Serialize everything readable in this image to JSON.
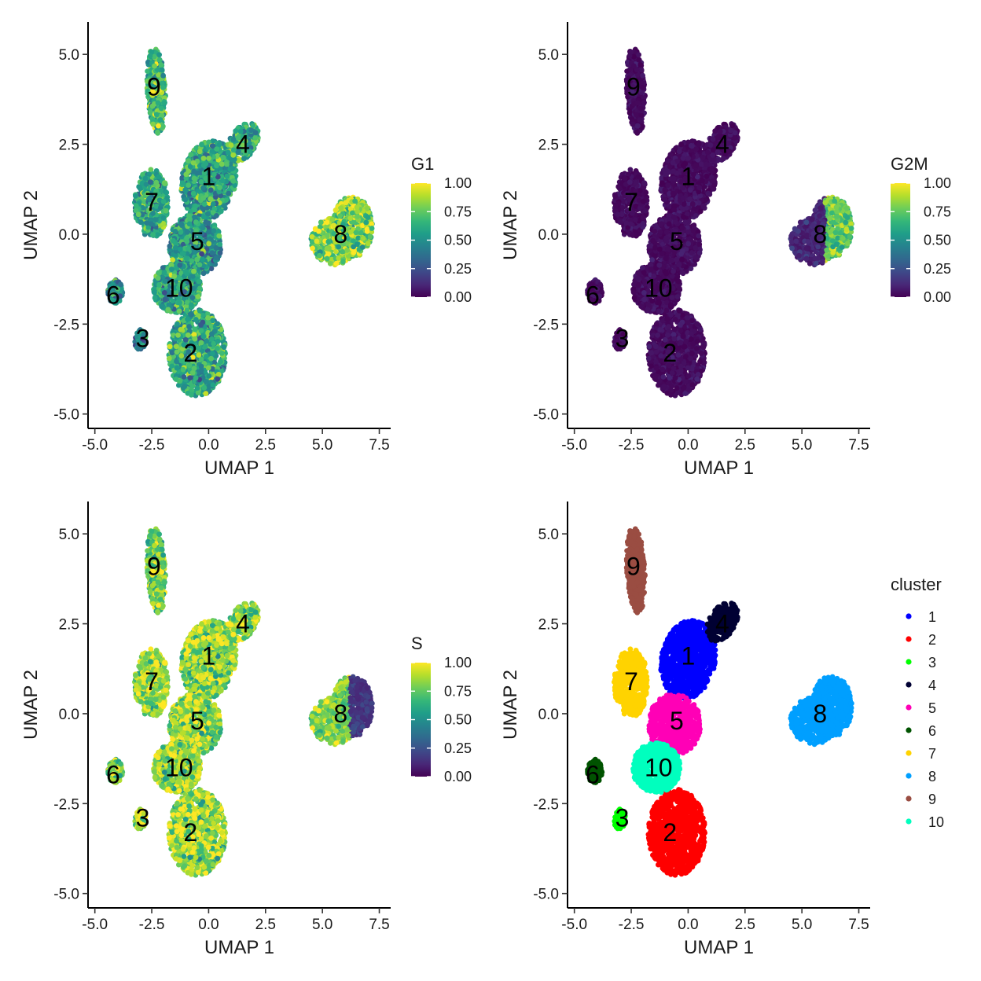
{
  "chart_data": [
    {
      "type": "scatter",
      "xlabel": "UMAP 1",
      "ylabel": "UMAP 2",
      "xlim": [
        -5.3,
        8.0
      ],
      "ylim": [
        -5.4,
        5.9
      ],
      "xticks": [
        -5.0,
        -2.5,
        0.0,
        2.5,
        5.0,
        7.5
      ],
      "xtick_labels": [
        "-5.0",
        "-2.5",
        "0.0",
        "2.5",
        "5.0",
        "7.5"
      ],
      "yticks": [
        -5.0,
        -2.5,
        0.0,
        2.5,
        5.0
      ],
      "ytick_labels": [
        "-5.0",
        "-2.5",
        "0.0",
        "2.5",
        "5.0"
      ],
      "color_by": "G1",
      "legend": {
        "title": "G1",
        "type": "colorbar",
        "ticks": [
          "0.00",
          "0.25",
          "0.50",
          "0.75",
          "1.00"
        ],
        "placement": "right"
      },
      "colormap": "viridis",
      "cluster_labels": [
        {
          "label": "1",
          "x": 0.0,
          "y": 1.6
        },
        {
          "label": "2",
          "x": -0.8,
          "y": -3.3
        },
        {
          "label": "3",
          "x": -2.9,
          "y": -2.9
        },
        {
          "label": "4",
          "x": 1.5,
          "y": 2.5
        },
        {
          "label": "5",
          "x": -0.5,
          "y": -0.2
        },
        {
          "label": "6",
          "x": -4.2,
          "y": -1.7
        },
        {
          "label": "7",
          "x": -2.5,
          "y": 0.9
        },
        {
          "label": "8",
          "x": 5.8,
          "y": 0.0
        },
        {
          "label": "9",
          "x": -2.4,
          "y": 4.1
        },
        {
          "label": "10",
          "x": -1.3,
          "y": -1.5
        }
      ],
      "cluster_mean_value": {
        "1": 0.6,
        "2": 0.6,
        "3": 0.45,
        "4": 0.65,
        "5": 0.55,
        "6": 0.5,
        "7": 0.6,
        "8": 0.8,
        "9": 0.7,
        "10": 0.6
      }
    },
    {
      "type": "scatter",
      "xlabel": "UMAP 1",
      "ylabel": "UMAP 2",
      "xlim": [
        -5.3,
        8.0
      ],
      "ylim": [
        -5.4,
        5.9
      ],
      "xticks": [
        -5.0,
        -2.5,
        0.0,
        2.5,
        5.0,
        7.5
      ],
      "xtick_labels": [
        "-5.0",
        "-2.5",
        "0.0",
        "2.5",
        "5.0",
        "7.5"
      ],
      "yticks": [
        -5.0,
        -2.5,
        0.0,
        2.5,
        5.0
      ],
      "ytick_labels": [
        "-5.0",
        "-2.5",
        "0.0",
        "2.5",
        "5.0"
      ],
      "color_by": "G2M",
      "legend": {
        "title": "G2M",
        "type": "colorbar",
        "ticks": [
          "0.00",
          "0.25",
          "0.50",
          "0.75",
          "1.00"
        ],
        "placement": "right"
      },
      "colormap": "viridis",
      "cluster_labels": [
        {
          "label": "1",
          "x": 0.0,
          "y": 1.6
        },
        {
          "label": "2",
          "x": -0.8,
          "y": -3.3
        },
        {
          "label": "3",
          "x": -2.9,
          "y": -2.9
        },
        {
          "label": "4",
          "x": 1.5,
          "y": 2.5
        },
        {
          "label": "5",
          "x": -0.5,
          "y": -0.2
        },
        {
          "label": "6",
          "x": -4.2,
          "y": -1.7
        },
        {
          "label": "7",
          "x": -2.5,
          "y": 0.9
        },
        {
          "label": "8",
          "x": 5.8,
          "y": 0.0
        },
        {
          "label": "9",
          "x": -2.4,
          "y": 4.1
        },
        {
          "label": "10",
          "x": -1.3,
          "y": -1.5
        }
      ],
      "cluster_mean_value": {
        "1": 0.05,
        "2": 0.05,
        "3": 0.05,
        "4": 0.05,
        "5": 0.05,
        "6": 0.05,
        "7": 0.05,
        "8": 0.35,
        "9": 0.05,
        "10": 0.05
      }
    },
    {
      "type": "scatter",
      "xlabel": "UMAP 1",
      "ylabel": "UMAP 2",
      "xlim": [
        -5.3,
        8.0
      ],
      "ylim": [
        -5.4,
        5.9
      ],
      "xticks": [
        -5.0,
        -2.5,
        0.0,
        2.5,
        5.0,
        7.5
      ],
      "xtick_labels": [
        "-5.0",
        "-2.5",
        "0.0",
        "2.5",
        "5.0",
        "7.5"
      ],
      "yticks": [
        -5.0,
        -2.5,
        0.0,
        2.5,
        5.0
      ],
      "ytick_labels": [
        "-5.0",
        "-2.5",
        "0.0",
        "2.5",
        "5.0"
      ],
      "color_by": "S",
      "legend": {
        "title": "S",
        "type": "colorbar",
        "ticks": [
          "0.00",
          "0.25",
          "0.50",
          "0.75",
          "1.00"
        ],
        "placement": "right"
      },
      "colormap": "viridis",
      "cluster_labels": [
        {
          "label": "1",
          "x": 0.0,
          "y": 1.6
        },
        {
          "label": "2",
          "x": -0.8,
          "y": -3.3
        },
        {
          "label": "3",
          "x": -2.9,
          "y": -2.9
        },
        {
          "label": "4",
          "x": 1.5,
          "y": 2.5
        },
        {
          "label": "5",
          "x": -0.5,
          "y": -0.2
        },
        {
          "label": "6",
          "x": -4.2,
          "y": -1.7
        },
        {
          "label": "7",
          "x": -2.5,
          "y": 0.9
        },
        {
          "label": "8",
          "x": 5.8,
          "y": 0.0
        },
        {
          "label": "9",
          "x": -2.4,
          "y": 4.1
        },
        {
          "label": "10",
          "x": -1.3,
          "y": -1.5
        }
      ],
      "cluster_mean_value": {
        "1": 0.85,
        "2": 0.85,
        "3": 0.9,
        "4": 0.85,
        "5": 0.85,
        "6": 0.8,
        "7": 0.85,
        "8": 0.45,
        "9": 0.8,
        "10": 0.85
      }
    },
    {
      "type": "scatter",
      "xlabel": "UMAP 1",
      "ylabel": "UMAP 2",
      "xlim": [
        -5.3,
        8.0
      ],
      "ylim": [
        -5.4,
        5.9
      ],
      "xticks": [
        -5.0,
        -2.5,
        0.0,
        2.5,
        5.0,
        7.5
      ],
      "xtick_labels": [
        "-5.0",
        "-2.5",
        "0.0",
        "2.5",
        "5.0",
        "7.5"
      ],
      "yticks": [
        -5.0,
        -2.5,
        0.0,
        2.5,
        5.0
      ],
      "ytick_labels": [
        "-5.0",
        "-2.5",
        "0.0",
        "2.5",
        "5.0"
      ],
      "color_by": "cluster",
      "legend": {
        "title": "cluster",
        "type": "categorical",
        "placement": "right",
        "entries": [
          {
            "label": "1",
            "color": "#0000ff"
          },
          {
            "label": "2",
            "color": "#ff0000"
          },
          {
            "label": "3",
            "color": "#00ff00"
          },
          {
            "label": "4",
            "color": "#000033"
          },
          {
            "label": "5",
            "color": "#ff00b6"
          },
          {
            "label": "6",
            "color": "#005300"
          },
          {
            "label": "7",
            "color": "#ffd300"
          },
          {
            "label": "8",
            "color": "#009fff"
          },
          {
            "label": "9",
            "color": "#9a4d42"
          },
          {
            "label": "10",
            "color": "#00ffbe"
          }
        ]
      },
      "cluster_labels": [
        {
          "label": "1",
          "x": 0.0,
          "y": 1.6
        },
        {
          "label": "2",
          "x": -0.8,
          "y": -3.3
        },
        {
          "label": "3",
          "x": -2.9,
          "y": -2.9
        },
        {
          "label": "4",
          "x": 1.5,
          "y": 2.5
        },
        {
          "label": "5",
          "x": -0.5,
          "y": -0.2
        },
        {
          "label": "6",
          "x": -4.2,
          "y": -1.7
        },
        {
          "label": "7",
          "x": -2.5,
          "y": 0.9
        },
        {
          "label": "8",
          "x": 5.8,
          "y": 0.0
        },
        {
          "label": "9",
          "x": -2.4,
          "y": 4.1
        },
        {
          "label": "10",
          "x": -1.3,
          "y": -1.5
        }
      ]
    }
  ]
}
